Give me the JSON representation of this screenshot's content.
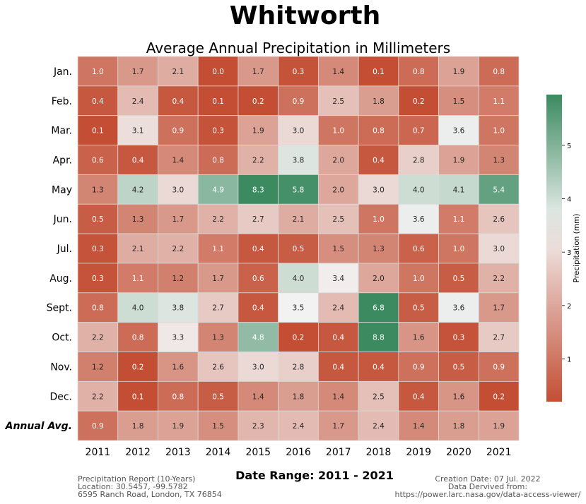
{
  "header": {
    "title": "Whitworth",
    "subtitle": "Average Annual Precipitation in Millimeters"
  },
  "chart_data": {
    "type": "heatmap",
    "x": [
      "2011",
      "2012",
      "2013",
      "2014",
      "2015",
      "2016",
      "2017",
      "2018",
      "2019",
      "2020",
      "2021"
    ],
    "y": [
      "Jan.",
      "Feb.",
      "Mar.",
      "Apr.",
      "May",
      "Jun.",
      "Jul.",
      "Aug.",
      "Sept.",
      "Oct.",
      "Nov.",
      "Dec.",
      "Annual Avg."
    ],
    "values": [
      [
        1.0,
        1.7,
        2.1,
        0.0,
        1.7,
        0.3,
        1.4,
        0.1,
        0.8,
        1.9,
        0.8
      ],
      [
        0.4,
        2.4,
        0.4,
        0.1,
        0.2,
        0.9,
        2.5,
        1.8,
        0.2,
        1.5,
        1.1
      ],
      [
        0.1,
        3.1,
        0.9,
        0.3,
        1.9,
        3.0,
        1.0,
        0.8,
        0.7,
        3.6,
        1.0
      ],
      [
        0.6,
        0.4,
        1.4,
        0.8,
        2.2,
        3.8,
        2.0,
        0.4,
        2.8,
        1.9,
        1.3
      ],
      [
        1.3,
        4.2,
        3.0,
        4.9,
        8.3,
        5.8,
        2.0,
        3.0,
        4.0,
        4.1,
        5.4
      ],
      [
        0.5,
        1.3,
        1.7,
        2.2,
        2.7,
        2.1,
        2.5,
        1.0,
        3.6,
        1.1,
        2.6
      ],
      [
        0.3,
        2.1,
        2.2,
        1.1,
        0.4,
        0.5,
        1.5,
        1.3,
        0.6,
        1.0,
        3.0
      ],
      [
        0.3,
        1.1,
        1.2,
        1.7,
        0.6,
        4.0,
        3.4,
        2.0,
        1.0,
        0.5,
        2.2
      ],
      [
        0.8,
        4.0,
        3.8,
        2.7,
        0.4,
        3.5,
        2.4,
        6.8,
        0.5,
        3.6,
        1.7
      ],
      [
        2.2,
        0.8,
        3.3,
        1.3,
        4.8,
        0.2,
        0.4,
        8.8,
        1.6,
        0.3,
        2.7
      ],
      [
        1.2,
        0.2,
        1.6,
        2.6,
        3.0,
        2.8,
        0.4,
        0.4,
        0.9,
        0.5,
        0.9
      ],
      [
        2.2,
        0.1,
        0.8,
        0.5,
        1.4,
        1.8,
        1.4,
        2.5,
        0.4,
        1.6,
        0.2
      ],
      [
        0.9,
        1.8,
        1.9,
        1.5,
        2.3,
        2.4,
        1.7,
        2.4,
        1.4,
        1.8,
        1.9
      ]
    ],
    "colorbar": {
      "label": "Precipitation (mm)",
      "range": [
        0.2,
        5.95
      ],
      "ticks": [
        1,
        2,
        3,
        4,
        5
      ]
    },
    "colors": {
      "low": "#c44e34",
      "mid": "#f2f2f2",
      "high": "#3b8a60"
    },
    "xlabel": "",
    "ylabel": ""
  },
  "footer": {
    "date_range": "Date Range: 2011 - 2021",
    "left_lines": [
      "Precipitation Report (10-Years)",
      "Location: 30.5457, -99.5782",
      "6595 Ranch Road, London, TX 76854"
    ],
    "right_lines": [
      "Creation Date: 07 Jul. 2022",
      "Data Dervived from:",
      "https://power.larc.nasa.gov/data-access-viewer/"
    ]
  }
}
